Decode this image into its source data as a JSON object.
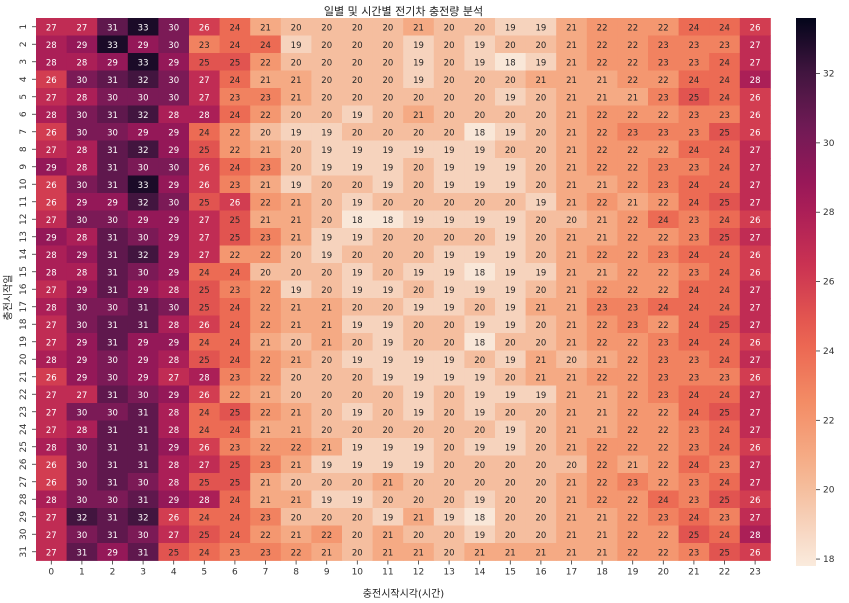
{
  "chart_data": {
    "type": "heatmap",
    "title": "일별 및 시간별 전기차 충전량 분석",
    "xlabel": "충전시작시각(시간)",
    "ylabel": "충전시작일",
    "x_categories": [
      "0",
      "1",
      "2",
      "3",
      "4",
      "5",
      "6",
      "7",
      "8",
      "9",
      "10",
      "11",
      "12",
      "13",
      "14",
      "15",
      "16",
      "17",
      "18",
      "19",
      "20",
      "21",
      "22",
      "23"
    ],
    "y_categories": [
      "1",
      "2",
      "3",
      "4",
      "5",
      "6",
      "7",
      "8",
      "9",
      "10",
      "11",
      "12",
      "13",
      "14",
      "15",
      "16",
      "17",
      "18",
      "19",
      "20",
      "21",
      "22",
      "23",
      "24",
      "25",
      "26",
      "27",
      "28",
      "29",
      "30",
      "31"
    ],
    "values": [
      [
        27,
        27,
        31,
        33,
        30,
        26,
        24,
        21,
        20,
        20,
        20,
        20,
        21,
        20,
        20,
        19,
        19,
        21,
        22,
        22,
        22,
        24,
        24,
        26
      ],
      [
        28,
        29,
        33,
        29,
        30,
        23,
        24,
        24,
        19,
        20,
        20,
        20,
        19,
        20,
        19,
        20,
        20,
        21,
        22,
        22,
        23,
        23,
        23,
        27
      ],
      [
        28,
        28,
        29,
        33,
        29,
        25,
        25,
        22,
        20,
        20,
        20,
        20,
        19,
        20,
        19,
        18,
        19,
        21,
        22,
        22,
        23,
        23,
        24,
        27
      ],
      [
        26,
        30,
        31,
        32,
        30,
        27,
        24,
        21,
        21,
        20,
        20,
        20,
        19,
        20,
        20,
        20,
        21,
        21,
        21,
        22,
        22,
        24,
        24,
        28
      ],
      [
        27,
        28,
        30,
        30,
        30,
        27,
        23,
        23,
        21,
        20,
        20,
        20,
        20,
        20,
        20,
        19,
        20,
        21,
        21,
        21,
        23,
        25,
        24,
        26
      ],
      [
        28,
        30,
        31,
        32,
        28,
        28,
        24,
        22,
        20,
        20,
        19,
        20,
        21,
        20,
        20,
        20,
        20,
        21,
        22,
        22,
        22,
        23,
        23,
        26
      ],
      [
        26,
        30,
        30,
        29,
        29,
        24,
        22,
        20,
        19,
        19,
        20,
        20,
        20,
        20,
        18,
        19,
        20,
        21,
        22,
        23,
        23,
        23,
        25,
        26
      ],
      [
        27,
        28,
        31,
        32,
        29,
        25,
        22,
        21,
        20,
        19,
        19,
        19,
        19,
        19,
        19,
        20,
        20,
        21,
        22,
        22,
        22,
        24,
        24,
        27
      ],
      [
        29,
        28,
        31,
        30,
        30,
        26,
        24,
        23,
        20,
        19,
        19,
        19,
        20,
        19,
        19,
        19,
        20,
        21,
        22,
        22,
        23,
        23,
        24,
        27
      ],
      [
        26,
        30,
        31,
        33,
        29,
        26,
        23,
        21,
        19,
        20,
        20,
        19,
        20,
        19,
        19,
        19,
        20,
        21,
        21,
        22,
        23,
        24,
        24,
        27
      ],
      [
        26,
        29,
        29,
        32,
        30,
        25,
        26,
        22,
        21,
        20,
        19,
        20,
        20,
        20,
        20,
        20,
        19,
        21,
        22,
        21,
        22,
        24,
        25,
        27
      ],
      [
        27,
        30,
        30,
        29,
        29,
        27,
        25,
        21,
        21,
        20,
        18,
        18,
        19,
        19,
        19,
        19,
        20,
        20,
        21,
        22,
        24,
        23,
        24,
        26
      ],
      [
        29,
        28,
        31,
        30,
        29,
        27,
        25,
        23,
        21,
        19,
        19,
        20,
        20,
        20,
        20,
        19,
        20,
        21,
        21,
        22,
        22,
        23,
        25,
        27
      ],
      [
        28,
        29,
        31,
        32,
        29,
        27,
        22,
        22,
        20,
        19,
        20,
        20,
        20,
        19,
        19,
        19,
        20,
        21,
        22,
        22,
        23,
        24,
        24,
        26
      ],
      [
        28,
        28,
        31,
        30,
        29,
        24,
        24,
        20,
        20,
        20,
        19,
        20,
        19,
        19,
        18,
        19,
        19,
        21,
        21,
        22,
        22,
        23,
        24,
        26
      ],
      [
        27,
        29,
        31,
        29,
        28,
        25,
        23,
        22,
        19,
        20,
        19,
        19,
        20,
        19,
        19,
        19,
        20,
        21,
        22,
        22,
        22,
        24,
        24,
        27
      ],
      [
        28,
        30,
        30,
        31,
        30,
        25,
        24,
        22,
        21,
        21,
        20,
        20,
        19,
        19,
        20,
        19,
        21,
        21,
        23,
        23,
        24,
        24,
        24,
        27
      ],
      [
        27,
        30,
        31,
        31,
        28,
        26,
        24,
        22,
        21,
        21,
        19,
        19,
        20,
        20,
        19,
        19,
        20,
        21,
        22,
        23,
        22,
        24,
        25,
        27
      ],
      [
        27,
        29,
        31,
        29,
        29,
        24,
        24,
        21,
        20,
        21,
        20,
        19,
        20,
        20,
        18,
        20,
        20,
        21,
        22,
        22,
        23,
        24,
        24,
        26
      ],
      [
        28,
        29,
        30,
        29,
        28,
        25,
        24,
        22,
        21,
        20,
        19,
        19,
        19,
        19,
        20,
        19,
        21,
        20,
        21,
        22,
        23,
        23,
        24,
        27
      ],
      [
        26,
        29,
        30,
        29,
        27,
        28,
        23,
        22,
        20,
        20,
        20,
        19,
        19,
        19,
        19,
        20,
        21,
        21,
        22,
        22,
        23,
        23,
        23,
        26
      ],
      [
        27,
        27,
        31,
        30,
        29,
        26,
        22,
        21,
        20,
        20,
        20,
        20,
        19,
        20,
        19,
        19,
        19,
        21,
        21,
        22,
        23,
        24,
        24,
        27
      ],
      [
        27,
        30,
        30,
        31,
        28,
        24,
        25,
        22,
        21,
        20,
        19,
        20,
        19,
        20,
        19,
        20,
        20,
        21,
        21,
        22,
        22,
        24,
        25,
        27
      ],
      [
        27,
        28,
        31,
        31,
        28,
        24,
        24,
        21,
        21,
        20,
        20,
        20,
        20,
        20,
        20,
        19,
        20,
        21,
        21,
        22,
        22,
        23,
        24,
        27
      ],
      [
        28,
        30,
        31,
        31,
        29,
        26,
        23,
        22,
        22,
        21,
        19,
        19,
        19,
        20,
        19,
        19,
        20,
        21,
        22,
        22,
        22,
        23,
        24,
        26
      ],
      [
        26,
        30,
        31,
        31,
        28,
        27,
        25,
        23,
        21,
        19,
        19,
        19,
        19,
        20,
        20,
        20,
        20,
        20,
        22,
        21,
        22,
        24,
        23,
        27
      ],
      [
        26,
        30,
        31,
        30,
        28,
        25,
        25,
        21,
        20,
        20,
        20,
        21,
        20,
        20,
        20,
        20,
        20,
        21,
        22,
        23,
        22,
        23,
        24,
        27
      ],
      [
        28,
        30,
        30,
        31,
        29,
        28,
        24,
        21,
        21,
        19,
        19,
        20,
        20,
        20,
        19,
        20,
        20,
        21,
        22,
        22,
        24,
        23,
        25,
        26
      ],
      [
        27,
        32,
        31,
        32,
        26,
        24,
        24,
        23,
        20,
        20,
        20,
        19,
        21,
        19,
        18,
        20,
        20,
        21,
        21,
        22,
        23,
        24,
        23,
        27
      ],
      [
        27,
        30,
        31,
        30,
        27,
        25,
        24,
        22,
        21,
        22,
        20,
        21,
        20,
        20,
        19,
        20,
        20,
        21,
        21,
        22,
        22,
        25,
        24,
        28
      ],
      [
        27,
        31,
        29,
        31,
        25,
        24,
        23,
        23,
        22,
        21,
        20,
        21,
        21,
        20,
        21,
        21,
        21,
        21,
        21,
        22,
        22,
        23,
        25,
        26
      ]
    ],
    "vmin": 17.8,
    "vmax": 33.6,
    "colorbar_ticks": [
      18,
      20,
      22,
      24,
      26,
      28,
      30,
      32
    ],
    "colormap": "rocket_r"
  }
}
